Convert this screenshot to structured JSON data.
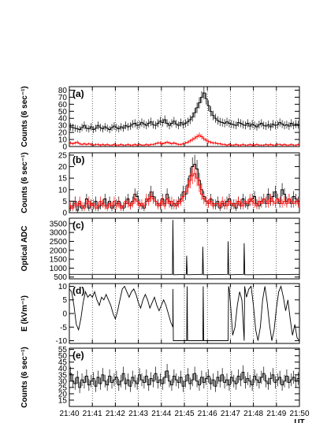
{
  "figure": {
    "x_tick_labels": [
      "21:40",
      "21:41",
      "21:42",
      "21:43",
      "21:44",
      "21:45",
      "21:46",
      "21:47",
      "21:48",
      "21:49",
      "21:50"
    ],
    "x_unit": "UT"
  },
  "chart_data": [
    {
      "panel": "(a)",
      "type": "line",
      "ylabel": "Counts (6 sec⁻¹)",
      "ylim": [
        0,
        85
      ],
      "yticks": [
        0,
        10,
        20,
        30,
        40,
        50,
        60,
        70,
        80
      ],
      "xlim": [
        0,
        10
      ],
      "grid": "vertical dotted at each minute",
      "series": [
        {
          "color": "#000000",
          "style": "step-errorbar",
          "values": [
            28,
            27,
            26,
            25,
            24,
            27,
            30,
            26,
            25,
            28,
            24,
            26,
            30,
            27,
            25,
            28,
            26,
            24,
            27,
            29,
            27,
            25,
            28,
            26,
            30,
            28,
            29,
            32,
            33,
            30,
            31,
            34,
            32,
            30,
            33,
            35,
            31,
            30,
            33,
            36,
            34,
            38,
            33,
            30,
            33,
            36,
            32,
            30,
            34,
            31,
            33,
            35,
            38,
            42,
            48,
            55,
            62,
            70,
            76,
            68,
            58,
            50,
            44,
            40,
            37,
            35,
            34,
            33,
            35,
            33,
            32,
            31,
            30,
            34,
            33,
            31,
            30,
            33,
            29,
            32,
            30,
            28,
            31,
            33,
            30,
            29,
            31,
            28,
            32,
            30,
            31,
            34,
            32,
            30,
            31,
            29,
            33,
            30,
            32,
            31
          ]
        },
        {
          "color": "#ff0000",
          "style": "step-errorbar",
          "values": [
            5,
            4,
            5,
            6,
            4,
            3,
            4,
            3,
            4,
            3,
            2,
            3,
            3,
            2,
            3,
            2,
            3,
            2,
            2,
            3,
            2,
            2,
            3,
            2,
            2,
            3,
            2,
            2,
            3,
            2,
            3,
            2,
            2,
            3,
            2,
            3,
            3,
            4,
            5,
            5,
            4,
            5,
            6,
            5,
            4,
            5,
            4,
            3,
            3,
            4,
            5,
            6,
            8,
            10,
            12,
            14,
            16,
            14,
            11,
            9,
            7,
            6,
            5,
            5,
            4,
            4,
            3,
            3,
            2,
            3,
            2,
            2,
            3,
            2,
            2,
            3,
            2,
            2,
            3,
            2,
            2,
            3,
            2,
            2,
            2,
            3,
            2,
            3,
            2,
            2,
            3,
            3,
            2,
            3,
            2,
            2,
            3,
            2,
            2,
            3
          ]
        }
      ]
    },
    {
      "panel": "(b)",
      "type": "line",
      "ylabel": "Counts (6 sec⁻¹)",
      "ylim": [
        0,
        26
      ],
      "yticks": [
        0,
        5,
        10,
        15,
        20,
        25
      ],
      "xlim": [
        0,
        10
      ],
      "series": [
        {
          "color": "#000000",
          "style": "step-errorbar",
          "values": [
            2,
            3,
            5,
            1,
            4,
            2,
            3,
            6,
            2,
            4,
            3,
            5,
            2,
            3,
            4,
            6,
            3,
            5,
            2,
            3,
            4,
            5,
            3,
            2,
            4,
            6,
            3,
            5,
            8,
            7,
            4,
            3,
            2,
            5,
            6,
            9,
            7,
            5,
            4,
            3,
            6,
            4,
            8,
            5,
            3,
            4,
            3,
            5,
            6,
            9,
            8,
            12,
            16,
            20,
            21,
            19,
            14,
            10,
            7,
            5,
            4,
            6,
            4,
            3,
            5,
            2,
            4,
            3,
            5,
            6,
            3,
            4,
            2,
            5,
            3,
            6,
            4,
            3,
            5,
            6,
            7,
            4,
            3,
            5,
            6,
            4,
            8,
            5,
            7,
            9,
            6,
            4,
            10,
            8,
            5,
            6,
            4,
            7,
            6,
            5
          ]
        },
        {
          "color": "#ff0000",
          "style": "step-errorbar",
          "values": [
            3,
            2,
            4,
            3,
            5,
            3,
            2,
            4,
            5,
            3,
            4,
            2,
            3,
            5,
            4,
            3,
            2,
            4,
            3,
            5,
            3,
            4,
            2,
            3,
            5,
            4,
            3,
            4,
            6,
            5,
            3,
            4,
            3,
            6,
            5,
            7,
            6,
            5,
            3,
            4,
            5,
            3,
            6,
            4,
            5,
            3,
            4,
            4,
            5,
            7,
            9,
            11,
            14,
            16,
            17,
            15,
            12,
            8,
            6,
            5,
            4,
            5,
            3,
            4,
            4,
            3,
            5,
            4,
            3,
            5,
            4,
            3,
            4,
            5,
            4,
            3,
            5,
            4,
            6,
            5,
            4,
            3,
            5,
            4,
            6,
            5,
            4,
            6,
            5,
            4,
            6,
            5,
            4,
            5,
            4,
            6,
            5,
            4,
            5,
            4
          ]
        }
      ]
    },
    {
      "panel": "(c)",
      "type": "line",
      "ylabel": "Optical ADC",
      "ylim": [
        400,
        3800
      ],
      "yticks": [
        500,
        1000,
        1500,
        2000,
        2500,
        3000,
        3500
      ],
      "xlim": [
        0,
        10
      ],
      "baseline": 650,
      "spikes": [
        [
          4.5,
          3700
        ],
        [
          5.1,
          1700
        ],
        [
          5.8,
          2200
        ],
        [
          6.9,
          2500
        ],
        [
          7.6,
          2400
        ]
      ],
      "series": [
        {
          "color": "#000000",
          "style": "line"
        }
      ]
    },
    {
      "panel": "(d)",
      "type": "line",
      "ylabel": "E (kVm⁻¹)",
      "ylim": [
        -11,
        11
      ],
      "yticks": [
        -10,
        -5,
        0,
        5,
        10
      ],
      "xlim": [
        0,
        10
      ],
      "series": [
        {
          "color": "#000000",
          "style": "line",
          "points": [
            [
              0,
              9
            ],
            [
              0.1,
              8
            ],
            [
              0.2,
              3
            ],
            [
              0.3,
              -4
            ],
            [
              0.4,
              -6
            ],
            [
              0.5,
              -2
            ],
            [
              0.6,
              4
            ],
            [
              0.7,
              8
            ],
            [
              0.8,
              6
            ],
            [
              0.9,
              7
            ],
            [
              1.0,
              6
            ],
            [
              1.1,
              8
            ],
            [
              1.2,
              5
            ],
            [
              1.3,
              3
            ],
            [
              1.4,
              6
            ],
            [
              1.5,
              5
            ],
            [
              1.6,
              7
            ],
            [
              1.7,
              5
            ],
            [
              1.8,
              3
            ],
            [
              1.9,
              0
            ],
            [
              2.0,
              -2
            ],
            [
              2.1,
              1
            ],
            [
              2.2,
              5
            ],
            [
              2.3,
              9
            ],
            [
              2.4,
              10
            ],
            [
              2.5,
              8
            ],
            [
              2.6,
              6
            ],
            [
              2.7,
              8
            ],
            [
              2.8,
              9
            ],
            [
              2.9,
              7
            ],
            [
              3.0,
              4
            ],
            [
              3.1,
              2
            ],
            [
              3.2,
              5
            ],
            [
              3.3,
              7
            ],
            [
              3.4,
              5
            ],
            [
              3.5,
              2
            ],
            [
              3.6,
              4
            ],
            [
              3.7,
              6
            ],
            [
              3.8,
              3
            ],
            [
              3.9,
              1
            ],
            [
              4.0,
              3
            ],
            [
              4.1,
              5
            ],
            [
              4.2,
              3
            ],
            [
              4.3,
              0
            ],
            [
              4.4,
              -3
            ],
            [
              4.5,
              -5
            ],
            [
              4.5,
              9
            ],
            [
              4.52,
              -10
            ],
            [
              5.1,
              -10
            ],
            [
              5.12,
              10
            ],
            [
              5.14,
              -10
            ],
            [
              5.8,
              -10
            ],
            [
              5.82,
              10
            ],
            [
              5.84,
              -10
            ],
            [
              6.4,
              -10
            ],
            [
              6.6,
              -10
            ],
            [
              6.9,
              -10
            ],
            [
              6.92,
              10
            ],
            [
              6.95,
              9
            ],
            [
              7.0,
              4
            ],
            [
              7.1,
              -8
            ],
            [
              7.2,
              -5
            ],
            [
              7.3,
              3
            ],
            [
              7.4,
              8
            ],
            [
              7.5,
              5
            ],
            [
              7.6,
              -10
            ],
            [
              7.62,
              10
            ],
            [
              7.7,
              6
            ],
            [
              7.8,
              9
            ],
            [
              7.9,
              10
            ],
            [
              8.0,
              3
            ],
            [
              8.1,
              -6
            ],
            [
              8.2,
              -10
            ],
            [
              8.3,
              -5
            ],
            [
              8.4,
              5
            ],
            [
              8.5,
              10
            ],
            [
              8.6,
              4
            ],
            [
              8.7,
              -4
            ],
            [
              8.8,
              -10
            ],
            [
              8.9,
              -6
            ],
            [
              9.0,
              2
            ],
            [
              9.1,
              8
            ],
            [
              9.2,
              10
            ],
            [
              9.3,
              6
            ],
            [
              9.4,
              1
            ],
            [
              9.5,
              5
            ],
            [
              9.6,
              -2
            ],
            [
              9.7,
              -8
            ],
            [
              9.8,
              -4
            ],
            [
              9.9,
              -9
            ],
            [
              10,
              -10
            ]
          ]
        }
      ]
    },
    {
      "panel": "(e)",
      "type": "line",
      "ylabel": "Counts (6 sec⁻¹)",
      "ylim": [
        10,
        56
      ],
      "yticks": [
        15,
        20,
        25,
        30,
        35,
        40,
        45,
        50,
        55
      ],
      "xlim": [
        0,
        10
      ],
      "series": [
        {
          "color": "#000000",
          "style": "step-errorbar",
          "values": [
            36,
            30,
            28,
            33,
            25,
            31,
            29,
            34,
            27,
            30,
            32,
            26,
            33,
            28,
            35,
            30,
            27,
            34,
            29,
            31,
            33,
            27,
            30,
            36,
            28,
            31,
            26,
            33,
            30,
            28,
            35,
            31,
            29,
            34,
            27,
            32,
            30,
            36,
            29,
            31,
            28,
            33,
            38,
            30,
            27,
            34,
            31,
            29,
            33,
            26,
            30,
            35,
            28,
            31,
            36,
            30,
            27,
            33,
            29,
            32,
            34,
            28,
            31,
            26,
            33,
            30,
            35,
            29,
            31,
            27,
            33,
            30,
            28,
            34,
            31,
            37,
            29,
            32,
            30,
            27,
            34,
            31,
            29,
            33,
            36,
            30,
            28,
            32,
            35,
            29,
            31,
            33,
            27,
            30,
            34,
            29,
            31,
            33,
            30,
            32
          ]
        }
      ]
    }
  ]
}
